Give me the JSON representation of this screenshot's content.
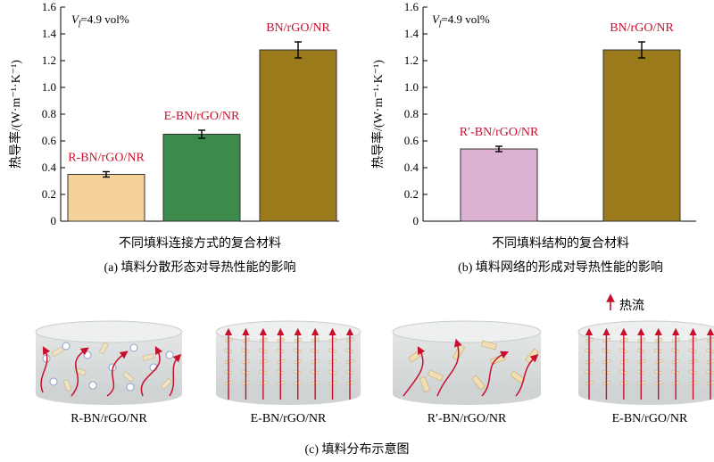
{
  "chart_data": [
    {
      "type": "bar",
      "panel_caption": "(a) 填料分散形态对导热性能的影响",
      "annotation": "Vf=4.9 vol%",
      "annotation_var": "V",
      "annotation_sub": "f",
      "annotation_rest": "=4.9 vol%",
      "ylabel": "热导率/(W·m⁻¹·K⁻¹)",
      "xlabel": "不同填料连接方式的复合材料",
      "ylim": [
        0,
        1.6
      ],
      "yticks": [
        "0",
        "0.2",
        "0.4",
        "0.6",
        "0.8",
        "1.0",
        "1.2",
        "1.4",
        "1.6"
      ],
      "categories": [
        "R-BN/rGO/NR",
        "E-BN/rGO/NR",
        "BN/rGO/NR"
      ],
      "values": [
        0.35,
        0.65,
        1.28
      ],
      "errors": [
        0.02,
        0.03,
        0.06
      ],
      "colors": [
        "#f6d29b",
        "#3c8a4c",
        "#9b7a1c"
      ]
    },
    {
      "type": "bar",
      "panel_caption": "(b) 填料网络的形成对导热性能的影响",
      "annotation": "Vf=4.9 vol%",
      "annotation_var": "V",
      "annotation_sub": "f",
      "annotation_rest": "=4.9 vol%",
      "ylabel": "热导率/(W·m⁻¹·K⁻¹)",
      "xlabel": "不同填料结构的复合材料",
      "ylim": [
        0,
        1.6
      ],
      "yticks": [
        "0",
        "0.2",
        "0.4",
        "0.6",
        "0.8",
        "1.0",
        "1.2",
        "1.4",
        "1.6"
      ],
      "categories": [
        "R′-BN/rGO/NR",
        "BN/rGO/NR"
      ],
      "values": [
        0.54,
        1.28
      ],
      "errors": [
        0.02,
        0.06
      ],
      "colors": [
        "#dcb2d2",
        "#9b7a1c"
      ]
    }
  ],
  "schematic": {
    "caption": "(c) 填料分布示意图",
    "heat_flow_label": "热流",
    "labels": [
      "R-BN/rGO/NR",
      "E-BN/rGO/NR",
      "R′-BN/rGO/NR",
      "E-BN/rGO/NR"
    ],
    "label_color": "#c8102e",
    "arrow_color": "#c8102e"
  }
}
